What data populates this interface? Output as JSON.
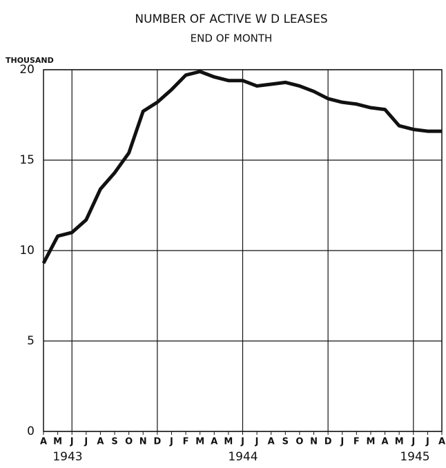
{
  "chart_data": {
    "type": "line",
    "title": "NUMBER OF ACTIVE W D LEASES",
    "subtitle": "END OF MONTH",
    "y_unit_label": "THOUSAND",
    "categories": [
      "A",
      "M",
      "J",
      "J",
      "A",
      "S",
      "O",
      "N",
      "D",
      "J",
      "F",
      "M",
      "A",
      "M",
      "J",
      "J",
      "A",
      "S",
      "O",
      "N",
      "D",
      "J",
      "F",
      "M",
      "A",
      "M",
      "J",
      "J",
      "A"
    ],
    "series": [
      {
        "name": "Active W D leases",
        "color": "#111111",
        "values": [
          9.3,
          10.8,
          11.0,
          11.7,
          13.4,
          14.3,
          15.4,
          17.7,
          18.2,
          18.9,
          19.7,
          19.9,
          19.6,
          19.4,
          19.4,
          19.1,
          19.2,
          19.3,
          19.1,
          18.8,
          18.4,
          18.2,
          18.1,
          17.9,
          17.8,
          16.9,
          16.7,
          16.6,
          16.6
        ]
      }
    ],
    "year_labels": [
      "1943",
      "1944",
      "1945"
    ],
    "ylim": [
      0,
      20
    ],
    "yticks": [
      0,
      5,
      10,
      15,
      20
    ],
    "grid": true
  }
}
